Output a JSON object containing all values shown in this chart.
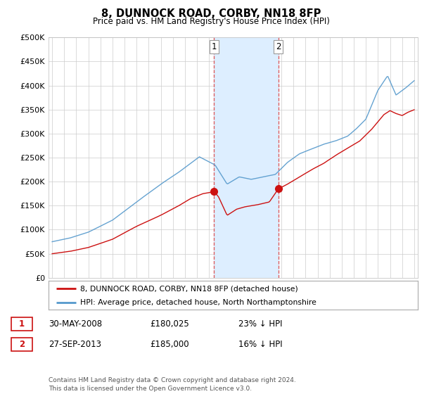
{
  "title": "8, DUNNOCK ROAD, CORBY, NN18 8FP",
  "subtitle": "Price paid vs. HM Land Registry's House Price Index (HPI)",
  "ylabel_ticks": [
    "£0",
    "£50K",
    "£100K",
    "£150K",
    "£200K",
    "£250K",
    "£300K",
    "£350K",
    "£400K",
    "£450K",
    "£500K"
  ],
  "ytick_values": [
    0,
    50000,
    100000,
    150000,
    200000,
    250000,
    300000,
    350000,
    400000,
    450000,
    500000
  ],
  "ylim": [
    0,
    500000
  ],
  "hpi_color": "#5599cc",
  "price_color": "#cc1111",
  "sale1_date": 2008.41,
  "sale1_price": 180025,
  "sale2_date": 2013.74,
  "sale2_price": 185000,
  "shade_color": "#ddeeff",
  "vline_color": "#dd4444",
  "legend_line1": "8, DUNNOCK ROAD, CORBY, NN18 8FP (detached house)",
  "legend_line2": "HPI: Average price, detached house, North Northamptonshire",
  "table_row1": [
    "1",
    "30-MAY-2008",
    "£180,025",
    "23% ↓ HPI"
  ],
  "table_row2": [
    "2",
    "27-SEP-2013",
    "£185,000",
    "16% ↓ HPI"
  ],
  "footnote": "Contains HM Land Registry data © Crown copyright and database right 2024.\nThis data is licensed under the Open Government Licence v3.0.",
  "background_color": "#ffffff",
  "grid_color": "#cccccc"
}
